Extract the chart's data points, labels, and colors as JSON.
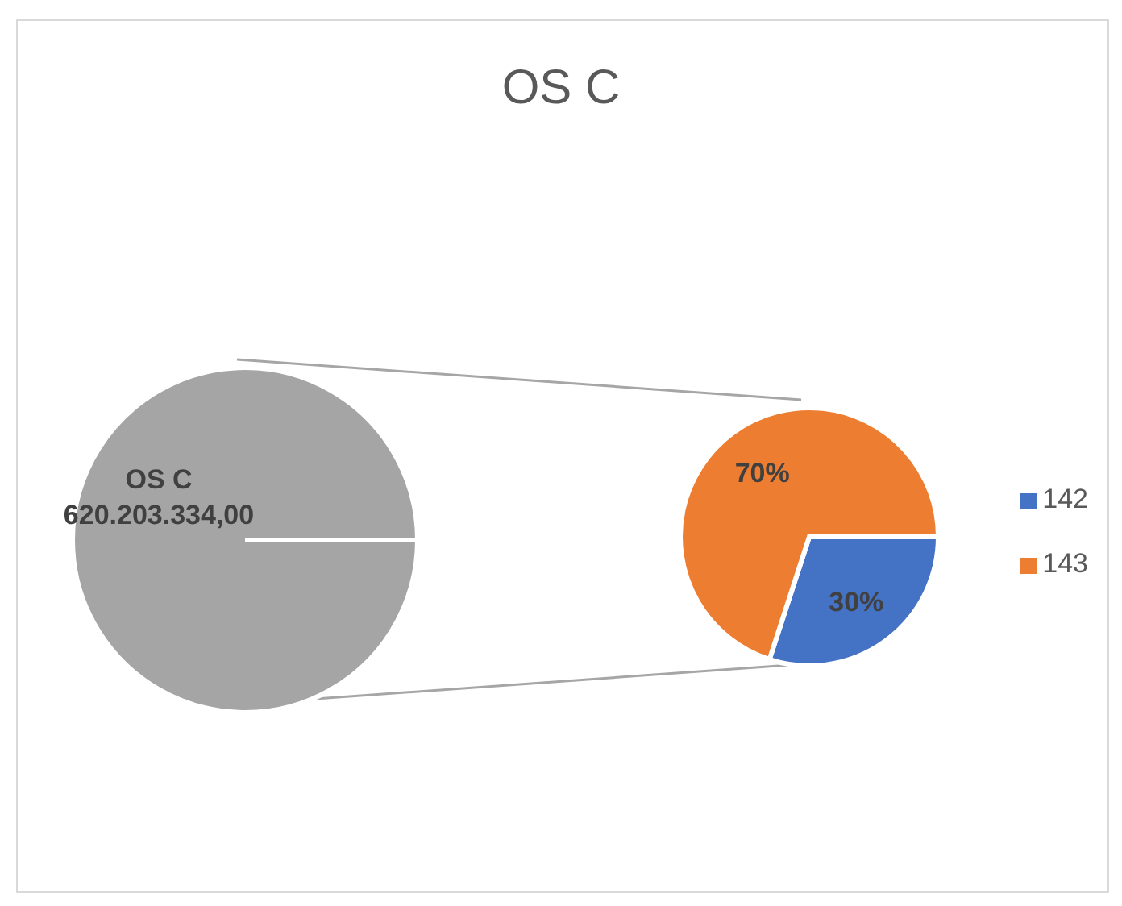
{
  "chart_data": [
    {
      "type": "pie",
      "title": "OS C",
      "categories": [
        "OS C"
      ],
      "values": [
        620203334
      ],
      "value_labels": [
        "620.203.334,00"
      ],
      "colors": [
        "#a5a5a5"
      ],
      "legend": false
    },
    {
      "type": "pie",
      "categories": [
        "142",
        "143"
      ],
      "values": [
        30,
        70
      ],
      "value_labels": [
        "30%",
        "70%"
      ],
      "colors": [
        "#4472c4",
        "#ed7d31"
      ],
      "legend": "right"
    }
  ]
}
